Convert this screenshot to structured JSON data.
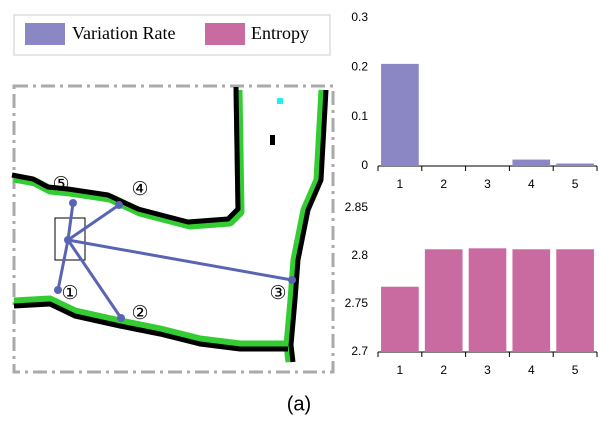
{
  "chart_data": [
    {
      "type": "bar",
      "categories": [
        "1",
        "2",
        "3",
        "4",
        "5"
      ],
      "series": [
        {
          "name": "Variation Rate",
          "color": "#8b87c4",
          "values": [
            0.207,
            0,
            0,
            0.013,
            0.005
          ]
        }
      ],
      "ylim": [
        0,
        0.3
      ],
      "yticks": [
        0,
        0.1,
        0.2,
        0.3
      ]
    },
    {
      "type": "bar",
      "categories": [
        "1",
        "2",
        "3",
        "4",
        "5"
      ],
      "series": [
        {
          "name": "Entropy",
          "color": "#c96aa0",
          "values": [
            2.768,
            2.807,
            2.808,
            2.807,
            2.807
          ]
        }
      ],
      "ylim": [
        2.7,
        2.85
      ],
      "yticks": [
        2.7,
        2.75,
        2.8,
        2.85
      ]
    }
  ],
  "map": {
    "labels": [
      "①",
      "②",
      "③",
      "④",
      "⑤"
    ]
  },
  "caption": "(a)"
}
